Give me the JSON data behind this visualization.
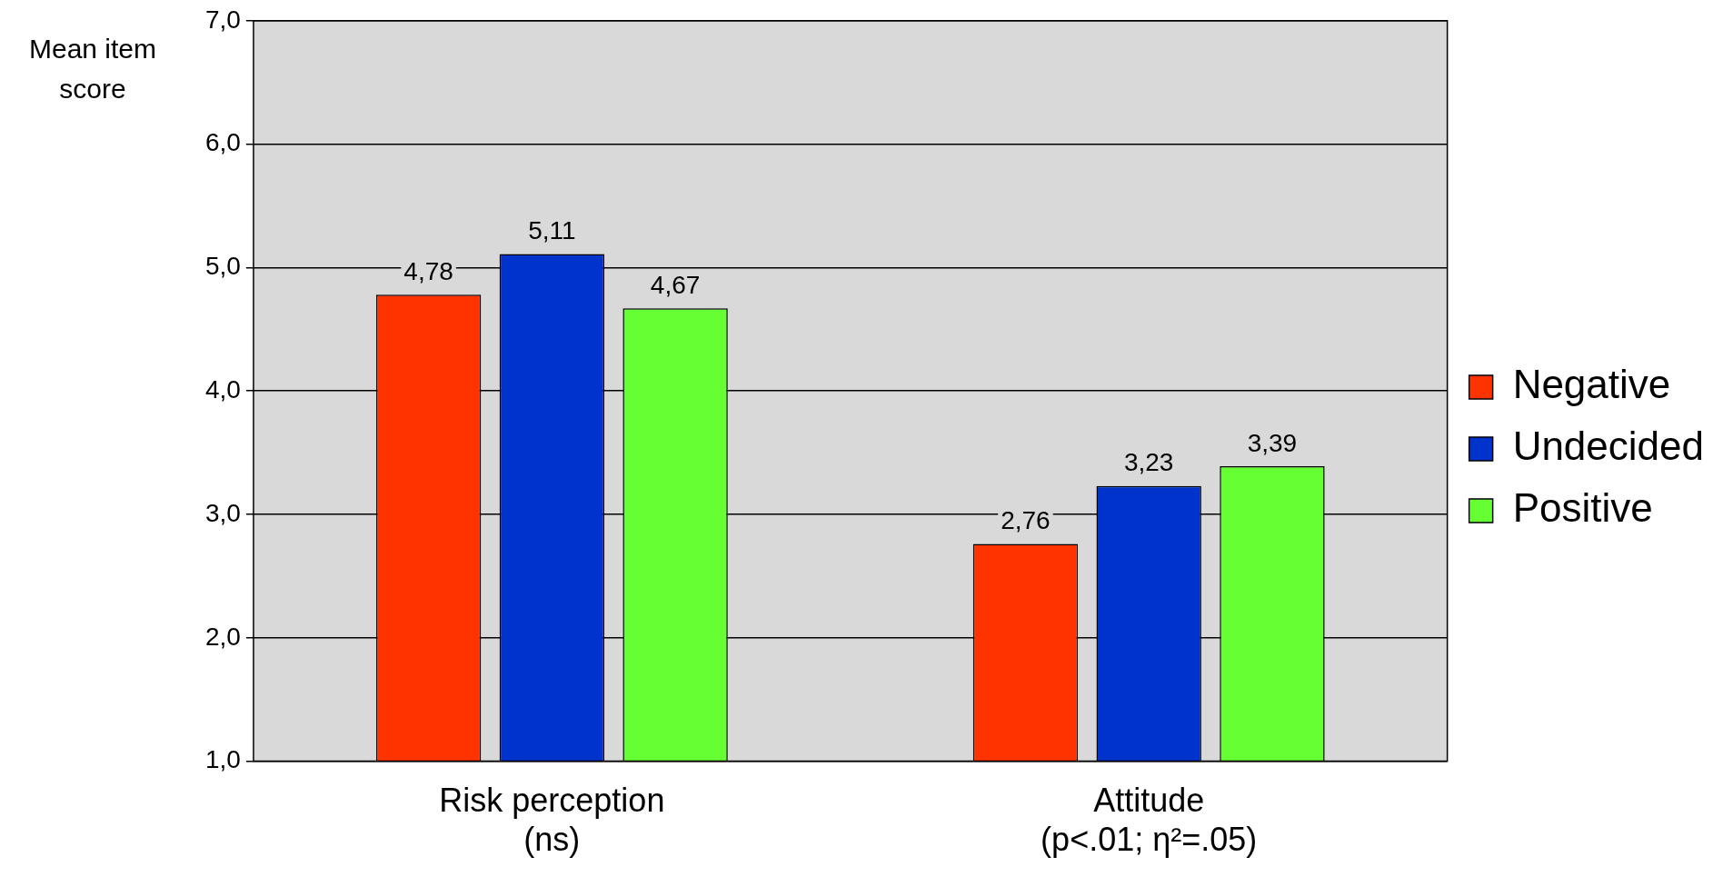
{
  "chart_data": {
    "type": "bar",
    "ylabel": "Mean item score",
    "categories": [
      "Risk perception\n(ns)",
      "Attitude\n(p<.01; η²=.05)"
    ],
    "series": [
      {
        "name": "Negative",
        "color": "#ff3300",
        "values": [
          4.78,
          2.76
        ],
        "value_labels": [
          "4,78",
          "2,76"
        ]
      },
      {
        "name": "Undecided",
        "color": "#0033cc",
        "values": [
          5.11,
          3.23
        ],
        "value_labels": [
          "5,11",
          "3,23"
        ]
      },
      {
        "name": "Positive",
        "color": "#66ff33",
        "values": [
          4.67,
          3.39
        ],
        "value_labels": [
          "4,67",
          "3,39"
        ]
      }
    ],
    "ylim": [
      1,
      7
    ],
    "yticks": [
      {
        "value": 1,
        "label": "1,0"
      },
      {
        "value": 2,
        "label": "2,0"
      },
      {
        "value": 3,
        "label": "3,0"
      },
      {
        "value": 4,
        "label": "4,0"
      },
      {
        "value": 5,
        "label": "5,0"
      },
      {
        "value": 6,
        "label": "6,0"
      },
      {
        "value": 7,
        "label": "7,0"
      }
    ],
    "grid": "y",
    "legend": "right"
  }
}
